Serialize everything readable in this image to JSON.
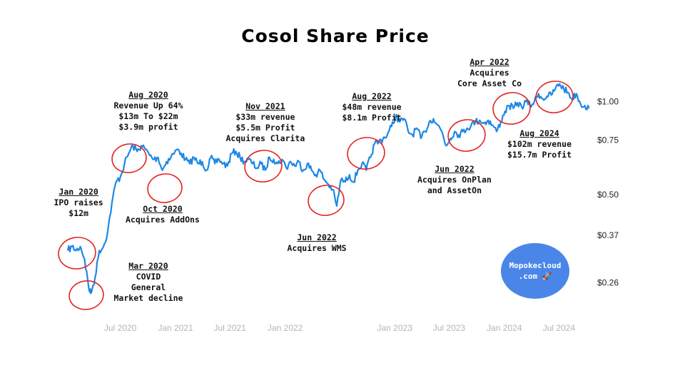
{
  "chart_data": {
    "type": "line",
    "title": "Cosol Share Price",
    "xlabel": "",
    "ylabel": "",
    "y_scale": "log",
    "ylim": [
      0.22,
      1.2
    ],
    "xlim": [
      "2020-01-01",
      "2024-10-15"
    ],
    "grid": false,
    "line_color": "#1e88e5",
    "x_ticks": [
      {
        "date": "2020-07-01",
        "label": "Jul 2020"
      },
      {
        "date": "2021-01-01",
        "label": "Jan 2021"
      },
      {
        "date": "2021-07-01",
        "label": "Jul 2021"
      },
      {
        "date": "2022-01-01",
        "label": "Jan 2022"
      },
      {
        "date": "2023-01-01",
        "label": "Jan 2023"
      },
      {
        "date": "2023-07-01",
        "label": "Jul 2023"
      },
      {
        "date": "2024-01-01",
        "label": "Jan 2024"
      },
      {
        "date": "2024-07-01",
        "label": "Jul 2024"
      }
    ],
    "y_ticks": [
      {
        "value": 1.0,
        "label": "$1.00"
      },
      {
        "value": 0.75,
        "label": "$0.75"
      },
      {
        "value": 0.5,
        "label": "$0.50"
      },
      {
        "value": 0.37,
        "label": "$0.37"
      },
      {
        "value": 0.26,
        "label": "$0.26"
      }
    ],
    "series": [
      {
        "points": [
          [
            "2020-01-08",
            0.33
          ],
          [
            "2020-01-22",
            0.34
          ],
          [
            "2020-02-05",
            0.33
          ],
          [
            "2020-02-19",
            0.34
          ],
          [
            "2020-03-04",
            0.31
          ],
          [
            "2020-03-18",
            0.25
          ],
          [
            "2020-03-25",
            0.24
          ],
          [
            "2020-04-08",
            0.27
          ],
          [
            "2020-04-22",
            0.33
          ],
          [
            "2020-05-06",
            0.34
          ],
          [
            "2020-05-20",
            0.38
          ],
          [
            "2020-06-03",
            0.47
          ],
          [
            "2020-06-17",
            0.55
          ],
          [
            "2020-07-01",
            0.57
          ],
          [
            "2020-07-15",
            0.63
          ],
          [
            "2020-07-29",
            0.68
          ],
          [
            "2020-08-12",
            0.72
          ],
          [
            "2020-08-26",
            0.69
          ],
          [
            "2020-09-09",
            0.72
          ],
          [
            "2020-09-23",
            0.7
          ],
          [
            "2020-10-07",
            0.67
          ],
          [
            "2020-10-21",
            0.65
          ],
          [
            "2020-11-04",
            0.66
          ],
          [
            "2020-11-18",
            0.6
          ],
          [
            "2020-12-02",
            0.64
          ],
          [
            "2020-12-16",
            0.66
          ],
          [
            "2021-01-06",
            0.7
          ],
          [
            "2021-01-20",
            0.68
          ],
          [
            "2021-02-03",
            0.65
          ],
          [
            "2021-02-17",
            0.63
          ],
          [
            "2021-03-03",
            0.66
          ],
          [
            "2021-03-17",
            0.63
          ],
          [
            "2021-03-31",
            0.64
          ],
          [
            "2021-04-14",
            0.6
          ],
          [
            "2021-04-28",
            0.66
          ],
          [
            "2021-05-12",
            0.63
          ],
          [
            "2021-05-26",
            0.65
          ],
          [
            "2021-06-09",
            0.63
          ],
          [
            "2021-06-23",
            0.62
          ],
          [
            "2021-07-07",
            0.68
          ],
          [
            "2021-07-21",
            0.69
          ],
          [
            "2021-08-04",
            0.66
          ],
          [
            "2021-08-18",
            0.64
          ],
          [
            "2021-09-01",
            0.65
          ],
          [
            "2021-09-15",
            0.63
          ],
          [
            "2021-09-29",
            0.61
          ],
          [
            "2021-10-13",
            0.63
          ],
          [
            "2021-10-27",
            0.6
          ],
          [
            "2021-11-10",
            0.66
          ],
          [
            "2021-11-24",
            0.65
          ],
          [
            "2021-12-08",
            0.63
          ],
          [
            "2021-12-22",
            0.65
          ],
          [
            "2022-01-05",
            0.61
          ],
          [
            "2022-01-19",
            0.64
          ],
          [
            "2022-02-02",
            0.62
          ],
          [
            "2022-02-16",
            0.64
          ],
          [
            "2022-03-02",
            0.6
          ],
          [
            "2022-03-16",
            0.63
          ],
          [
            "2022-03-30",
            0.6
          ],
          [
            "2022-04-13",
            0.58
          ],
          [
            "2022-04-27",
            0.6
          ],
          [
            "2022-05-11",
            0.56
          ],
          [
            "2022-05-25",
            0.54
          ],
          [
            "2022-06-08",
            0.52
          ],
          [
            "2022-06-22",
            0.46
          ],
          [
            "2022-07-06",
            0.56
          ],
          [
            "2022-07-20",
            0.55
          ],
          [
            "2022-08-03",
            0.58
          ],
          [
            "2022-08-17",
            0.55
          ],
          [
            "2022-08-31",
            0.6
          ],
          [
            "2022-09-14",
            0.63
          ],
          [
            "2022-09-28",
            0.6
          ],
          [
            "2022-10-12",
            0.66
          ],
          [
            "2022-10-26",
            0.73
          ],
          [
            "2022-11-09",
            0.74
          ],
          [
            "2022-11-23",
            0.76
          ],
          [
            "2022-12-07",
            0.78
          ],
          [
            "2022-12-21",
            0.83
          ],
          [
            "2023-01-04",
            0.9
          ],
          [
            "2023-01-18",
            0.86
          ],
          [
            "2023-02-01",
            0.88
          ],
          [
            "2023-02-15",
            0.8
          ],
          [
            "2023-03-01",
            0.78
          ],
          [
            "2023-03-15",
            0.82
          ],
          [
            "2023-03-29",
            0.76
          ],
          [
            "2023-04-12",
            0.8
          ],
          [
            "2023-04-26",
            0.86
          ],
          [
            "2023-05-10",
            0.88
          ],
          [
            "2023-05-24",
            0.84
          ],
          [
            "2023-06-07",
            0.8
          ],
          [
            "2023-06-21",
            0.72
          ],
          [
            "2023-07-05",
            0.76
          ],
          [
            "2023-07-19",
            0.8
          ],
          [
            "2023-08-02",
            0.78
          ],
          [
            "2023-08-16",
            0.8
          ],
          [
            "2023-08-30",
            0.82
          ],
          [
            "2023-09-13",
            0.84
          ],
          [
            "2023-09-27",
            0.86
          ],
          [
            "2023-10-11",
            0.87
          ],
          [
            "2023-10-25",
            0.85
          ],
          [
            "2023-11-08",
            0.87
          ],
          [
            "2023-11-22",
            0.84
          ],
          [
            "2023-12-06",
            0.8
          ],
          [
            "2023-12-20",
            0.86
          ],
          [
            "2024-01-03",
            0.93
          ],
          [
            "2024-01-17",
            0.97
          ],
          [
            "2024-01-31",
            0.95
          ],
          [
            "2024-02-14",
            0.99
          ],
          [
            "2024-02-28",
            0.96
          ],
          [
            "2024-03-13",
            1.0
          ],
          [
            "2024-03-27",
            0.97
          ],
          [
            "2024-04-10",
            1.0
          ],
          [
            "2024-04-24",
            1.06
          ],
          [
            "2024-05-08",
            1.02
          ],
          [
            "2024-05-22",
            1.04
          ],
          [
            "2024-06-05",
            1.05
          ],
          [
            "2024-06-19",
            1.1
          ],
          [
            "2024-07-03",
            1.14
          ],
          [
            "2024-07-17",
            1.1
          ],
          [
            "2024-07-31",
            1.07
          ],
          [
            "2024-08-14",
            1.02
          ],
          [
            "2024-08-28",
            1.06
          ],
          [
            "2024-09-11",
            0.98
          ],
          [
            "2024-09-25",
            0.97
          ],
          [
            "2024-10-09",
            0.95
          ]
        ]
      }
    ],
    "annotations": [
      {
        "date": "2020-01-25",
        "value": 0.34,
        "heading": "Jan 2020",
        "lines": [
          "IPO raises",
          "$12m"
        ]
      },
      {
        "date": "2020-03-25",
        "value": 0.245,
        "heading": "Mar 2020",
        "lines": [
          "COVID",
          "General",
          "Market decline"
        ]
      },
      {
        "date": "2020-08-20",
        "value": 0.71,
        "heading": "Aug 2020",
        "lines": [
          "Revenue Up 64%",
          "$13m To $22m",
          "$3.9m profit"
        ]
      },
      {
        "date": "2020-11-10",
        "value": 0.62,
        "heading": "Oct 2020",
        "lines": [
          "Acquires AddOns"
        ]
      },
      {
        "date": "2021-11-20",
        "value": 0.65,
        "heading": "Nov 2021",
        "lines": [
          "$33m revenue",
          "$5.5m Profit",
          "Acquires Clarita"
        ]
      },
      {
        "date": "2022-06-15",
        "value": 0.52,
        "heading": "Jun 2022",
        "lines": [
          "Acquires WMS"
        ]
      },
      {
        "date": "2022-10-20",
        "value": 0.72,
        "heading": "Aug 2022",
        "lines": [
          "$48m revenue",
          "$8.1m Profit"
        ]
      },
      {
        "date": "2023-09-25",
        "value": 0.85,
        "heading": "Jun 2022",
        "lines": [
          "Acquires OnPlan",
          "and AssetOn"
        ]
      },
      {
        "date": "2024-01-25",
        "value": 0.96,
        "heading": "Apr 2022",
        "lines": [
          "Acquires",
          "Core Asset Co"
        ]
      },
      {
        "date": "2024-06-20",
        "value": 1.08,
        "heading": "Aug 2024",
        "lines": [
          "$102m revenue",
          "$15.7m Profit"
        ]
      }
    ]
  },
  "badge": {
    "text_line1": "Mopokecloud",
    "text_line2": ".com 🚀"
  }
}
